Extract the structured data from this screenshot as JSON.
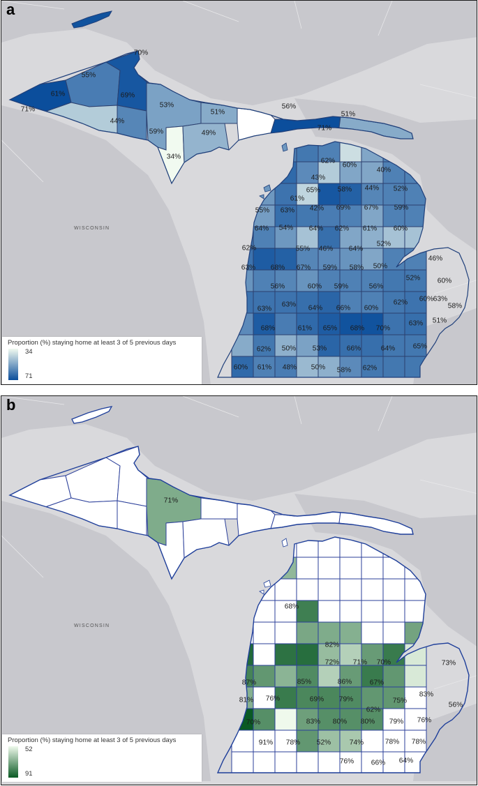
{
  "panel_a": {
    "letter": "a",
    "background_label": "WISCONSIN",
    "legend": {
      "title": "Proportion (%) staying home at least 3 of 5 previous days",
      "min": "34",
      "max": "71",
      "color_low": "#f1faf0",
      "color_high": "#0b4e9c"
    },
    "counties": [
      {
        "label": "70%",
        "value": 70
      },
      {
        "label": "55%",
        "value": 55
      },
      {
        "label": "61%",
        "value": 61
      },
      {
        "label": "69%",
        "value": 69
      },
      {
        "label": "71%",
        "value": 71
      },
      {
        "label": "53%",
        "value": 53
      },
      {
        "label": "44%",
        "value": 44
      },
      {
        "label": "59%",
        "value": 59
      },
      {
        "label": "34%",
        "value": 34
      },
      {
        "label": "51%",
        "value": 51
      },
      {
        "label": "49%",
        "value": 49
      },
      {
        "label": "56%",
        "value": 56
      },
      {
        "label": "51%",
        "value": 51
      },
      {
        "label": "71%",
        "value": 71
      },
      {
        "label": "62%",
        "value": 62
      },
      {
        "label": "60%",
        "value": 60
      },
      {
        "label": "40%",
        "value": 40
      },
      {
        "label": "43%",
        "value": 43
      },
      {
        "label": "65%",
        "value": 65
      },
      {
        "label": "58%",
        "value": 58
      },
      {
        "label": "44%",
        "value": 44
      },
      {
        "label": "52%",
        "value": 52
      },
      {
        "label": "61%",
        "value": 61
      },
      {
        "label": "55%",
        "value": 55
      },
      {
        "label": "63%",
        "value": 63
      },
      {
        "label": "42%",
        "value": 42
      },
      {
        "label": "69%",
        "value": 69
      },
      {
        "label": "67%",
        "value": 67
      },
      {
        "label": "59%",
        "value": 59
      },
      {
        "label": "64%",
        "value": 64
      },
      {
        "label": "54%",
        "value": 54
      },
      {
        "label": "64%",
        "value": 64
      },
      {
        "label": "62%",
        "value": 62
      },
      {
        "label": "61%",
        "value": 61
      },
      {
        "label": "60%",
        "value": 60
      },
      {
        "label": "62%",
        "value": 62
      },
      {
        "label": "55%",
        "value": 55
      },
      {
        "label": "46%",
        "value": 46
      },
      {
        "label": "64%",
        "value": 64
      },
      {
        "label": "52%",
        "value": 52
      },
      {
        "label": "46%",
        "value": 46
      },
      {
        "label": "63%",
        "value": 63
      },
      {
        "label": "68%",
        "value": 68
      },
      {
        "label": "67%",
        "value": 67
      },
      {
        "label": "59%",
        "value": 59
      },
      {
        "label": "58%",
        "value": 58
      },
      {
        "label": "50%",
        "value": 50
      },
      {
        "label": "52%",
        "value": 52
      },
      {
        "label": "60%",
        "value": 60
      },
      {
        "label": "56%",
        "value": 56
      },
      {
        "label": "60%",
        "value": 60
      },
      {
        "label": "59%",
        "value": 59
      },
      {
        "label": "56%",
        "value": 56
      },
      {
        "label": "60%",
        "value": 60
      },
      {
        "label": "63%",
        "value": 63
      },
      {
        "label": "63%",
        "value": 63
      },
      {
        "label": "63%",
        "value": 63
      },
      {
        "label": "64%",
        "value": 64
      },
      {
        "label": "66%",
        "value": 66
      },
      {
        "label": "60%",
        "value": 60
      },
      {
        "label": "62%",
        "value": 62
      },
      {
        "label": "58%",
        "value": 58
      },
      {
        "label": "68%",
        "value": 68
      },
      {
        "label": "61%",
        "value": 61
      },
      {
        "label": "65%",
        "value": 65
      },
      {
        "label": "68%",
        "value": 68
      },
      {
        "label": "70%",
        "value": 70
      },
      {
        "label": "63%",
        "value": 63
      },
      {
        "label": "51%",
        "value": 51
      },
      {
        "label": "62%",
        "value": 62
      },
      {
        "label": "50%",
        "value": 50
      },
      {
        "label": "53%",
        "value": 53
      },
      {
        "label": "66%",
        "value": 66
      },
      {
        "label": "64%",
        "value": 64
      },
      {
        "label": "65%",
        "value": 65
      },
      {
        "label": "60%",
        "value": 60
      },
      {
        "label": "61%",
        "value": 61
      },
      {
        "label": "48%",
        "value": 48
      },
      {
        "label": "50%",
        "value": 50
      },
      {
        "label": "58%",
        "value": 58
      },
      {
        "label": "62%",
        "value": 62
      }
    ]
  },
  "panel_b": {
    "letter": "b",
    "background_label": "WISCONSIN",
    "legend": {
      "title": "Proportion (%) staying home at least 3 of 5 previous days",
      "min": "52",
      "max": "91",
      "color_low": "#eff9ec",
      "color_high": "#0a5a24"
    },
    "counties": [
      {
        "label": "71%",
        "value": 71
      },
      {
        "label": "68%",
        "value": 68
      },
      {
        "label": "82%",
        "value": 82
      },
      {
        "label": "72%",
        "value": 72
      },
      {
        "label": "71%",
        "value": 71
      },
      {
        "label": "70%",
        "value": 70
      },
      {
        "label": "73%",
        "value": 73
      },
      {
        "label": "87%",
        "value": 87
      },
      {
        "label": "85%",
        "value": 85
      },
      {
        "label": "86%",
        "value": 86
      },
      {
        "label": "67%",
        "value": 67
      },
      {
        "label": "81%",
        "value": 81
      },
      {
        "label": "76%",
        "value": 76
      },
      {
        "label": "69%",
        "value": 69
      },
      {
        "label": "79%",
        "value": 79
      },
      {
        "label": "62%",
        "value": 62
      },
      {
        "label": "75%",
        "value": 75
      },
      {
        "label": "83%",
        "value": 83
      },
      {
        "label": "56%",
        "value": 56
      },
      {
        "label": "70%",
        "value": 70
      },
      {
        "label": "83%",
        "value": 83
      },
      {
        "label": "80%",
        "value": 80
      },
      {
        "label": "80%",
        "value": 80
      },
      {
        "label": "79%",
        "value": 79
      },
      {
        "label": "76%",
        "value": 76
      },
      {
        "label": "91%",
        "value": 91
      },
      {
        "label": "78%",
        "value": 78
      },
      {
        "label": "52%",
        "value": 52
      },
      {
        "label": "74%",
        "value": 74
      },
      {
        "label": "78%",
        "value": 78
      },
      {
        "label": "78%",
        "value": 78
      },
      {
        "label": "76%",
        "value": 76
      },
      {
        "label": "66%",
        "value": 66
      },
      {
        "label": "64%",
        "value": 64
      }
    ]
  }
}
